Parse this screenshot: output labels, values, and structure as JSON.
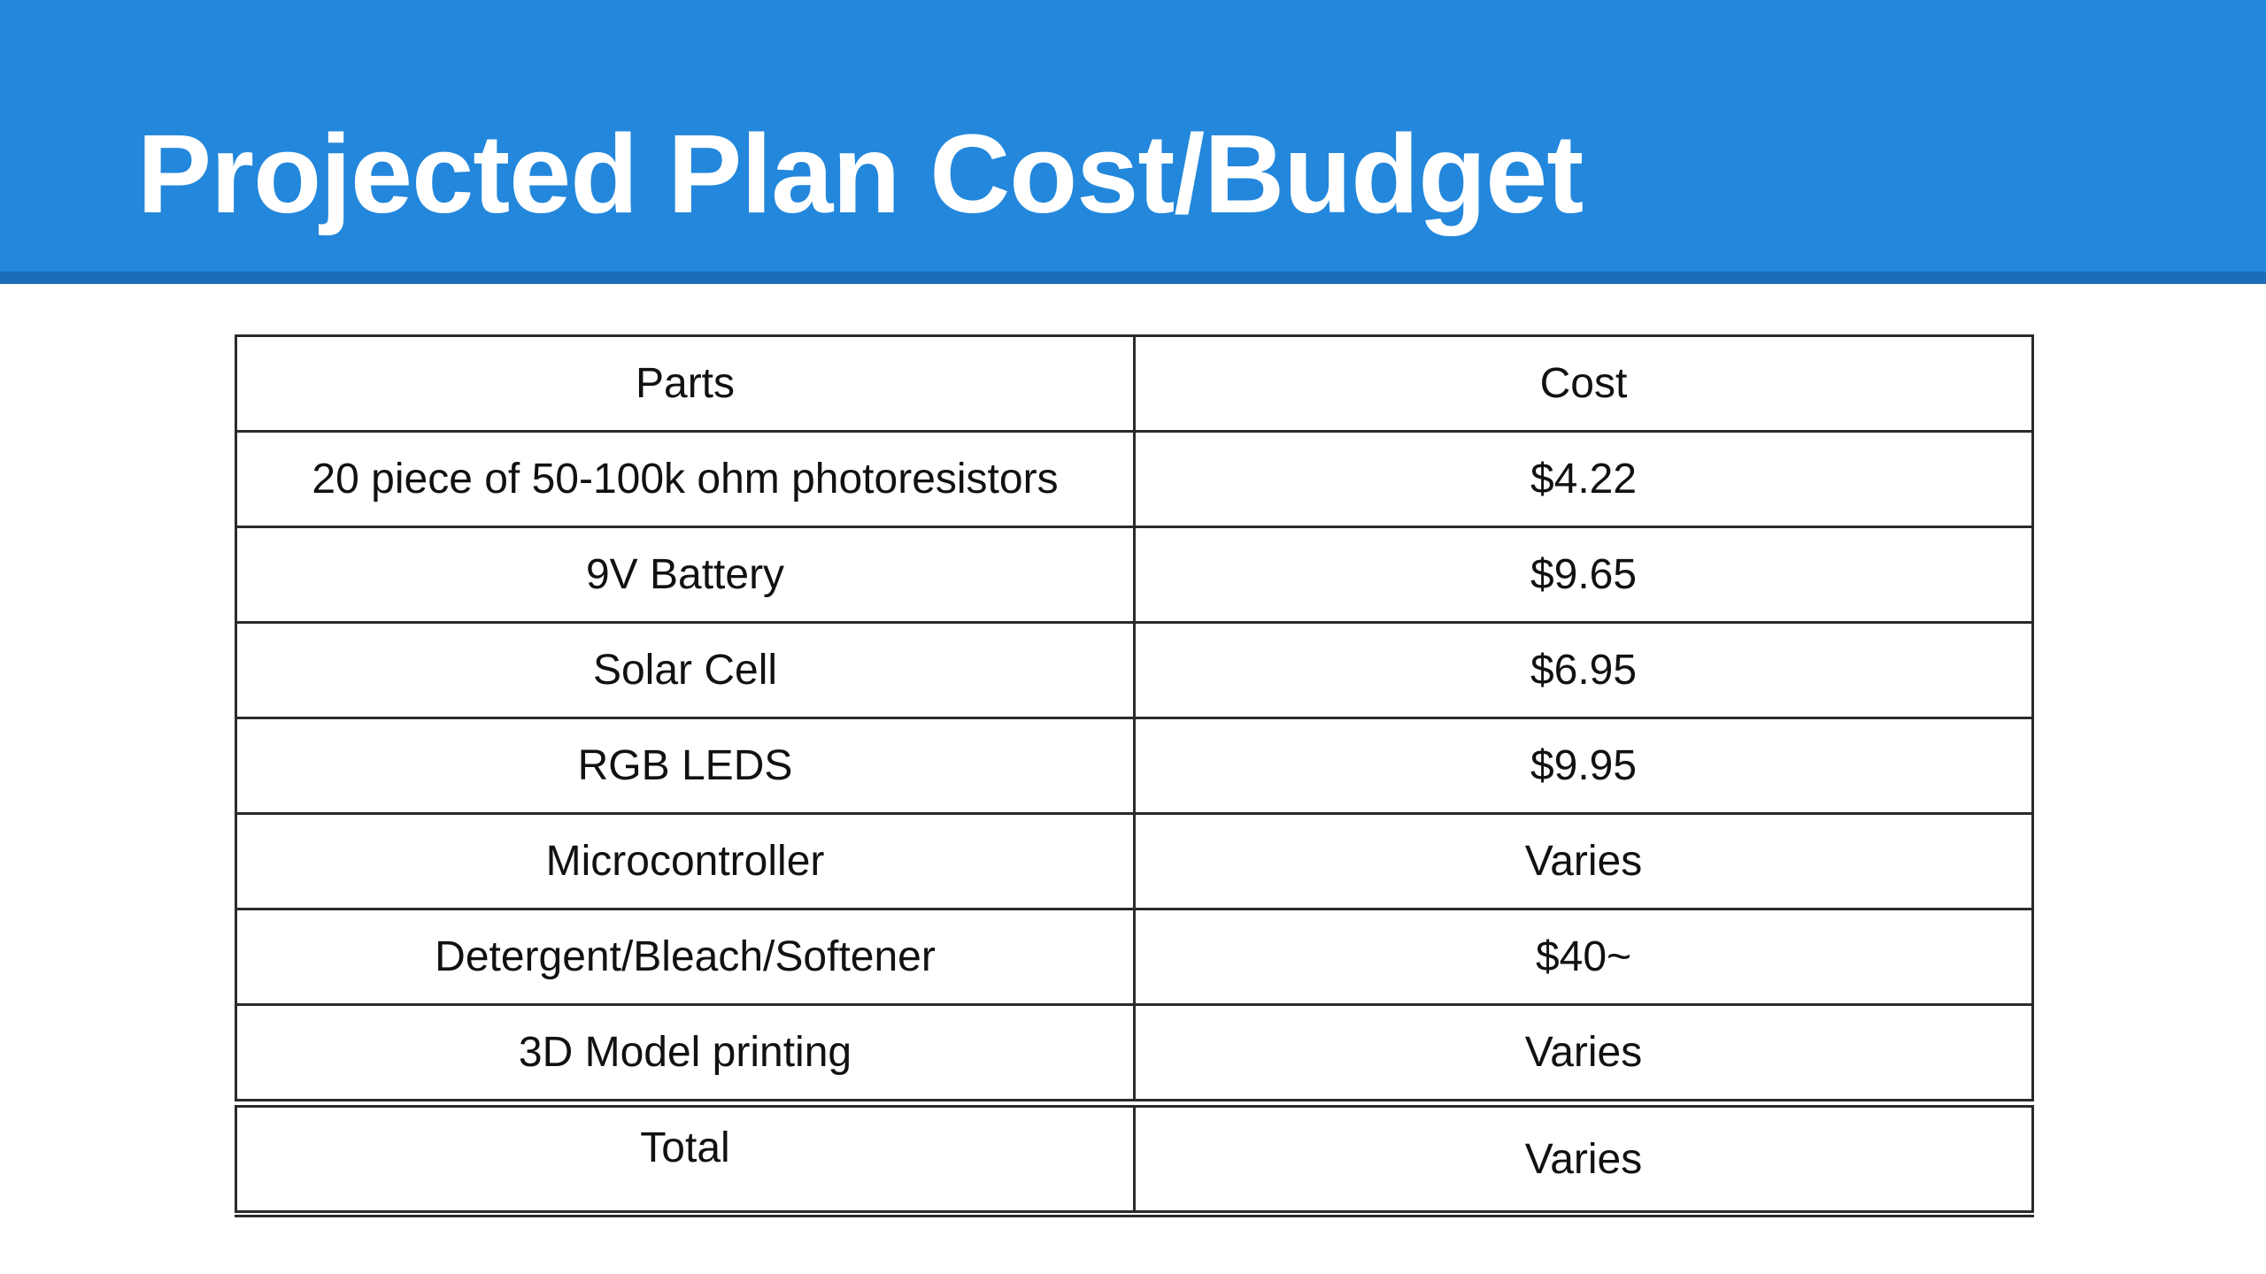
{
  "slide": {
    "title": "Projected Plan Cost/Budget"
  },
  "colors": {
    "title_bar": "#2387dc",
    "title_bar_shadow": "#1c6db7",
    "title_text": "#ffffff",
    "table_border": "#2a2a2a"
  },
  "table": {
    "headers": {
      "parts": "Parts",
      "cost": "Cost"
    },
    "rows": [
      {
        "part": "20 piece of 50-100k ohm photoresistors",
        "cost": "$4.22"
      },
      {
        "part": "9V Battery",
        "cost": "$9.65"
      },
      {
        "part": "Solar Cell",
        "cost": "$6.95"
      },
      {
        "part": "RGB LEDS",
        "cost": "$9.95"
      },
      {
        "part": "Microcontroller",
        "cost": "Varies"
      },
      {
        "part": "Detergent/Bleach/Softener",
        "cost": "$40~"
      },
      {
        "part": "3D Model printing",
        "cost": "Varies"
      }
    ],
    "total": {
      "label": "Total",
      "cost": "Varies"
    }
  }
}
